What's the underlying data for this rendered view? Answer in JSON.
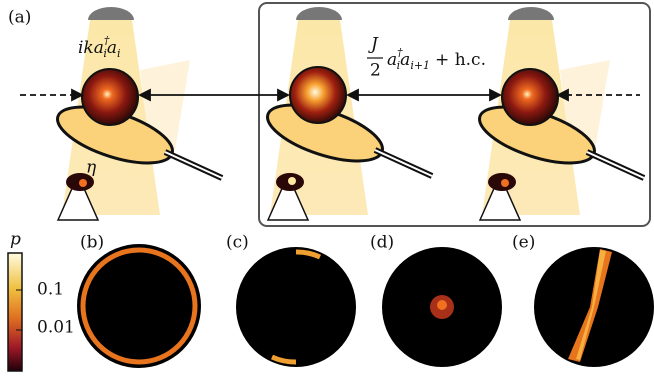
{
  "panel_a": {
    "label": "(a)",
    "onsite_term": {
      "main1": "ika",
      "sup": "†",
      "sub1": "i",
      "main2": "a",
      "sub2": "i"
    },
    "hopping_term": {
      "num": "J",
      "den": "2",
      "main1": "a",
      "sup": "†",
      "sub1": "i",
      "main2": "a",
      "sub2": "i+1",
      "rest": "+ h.c."
    },
    "detector_label": "η"
  },
  "colorbar": {
    "label": "p",
    "ticks": [
      "0.1",
      "0.01"
    ]
  },
  "panels": [
    "(b)",
    "(c)",
    "(d)",
    "(e)"
  ]
}
